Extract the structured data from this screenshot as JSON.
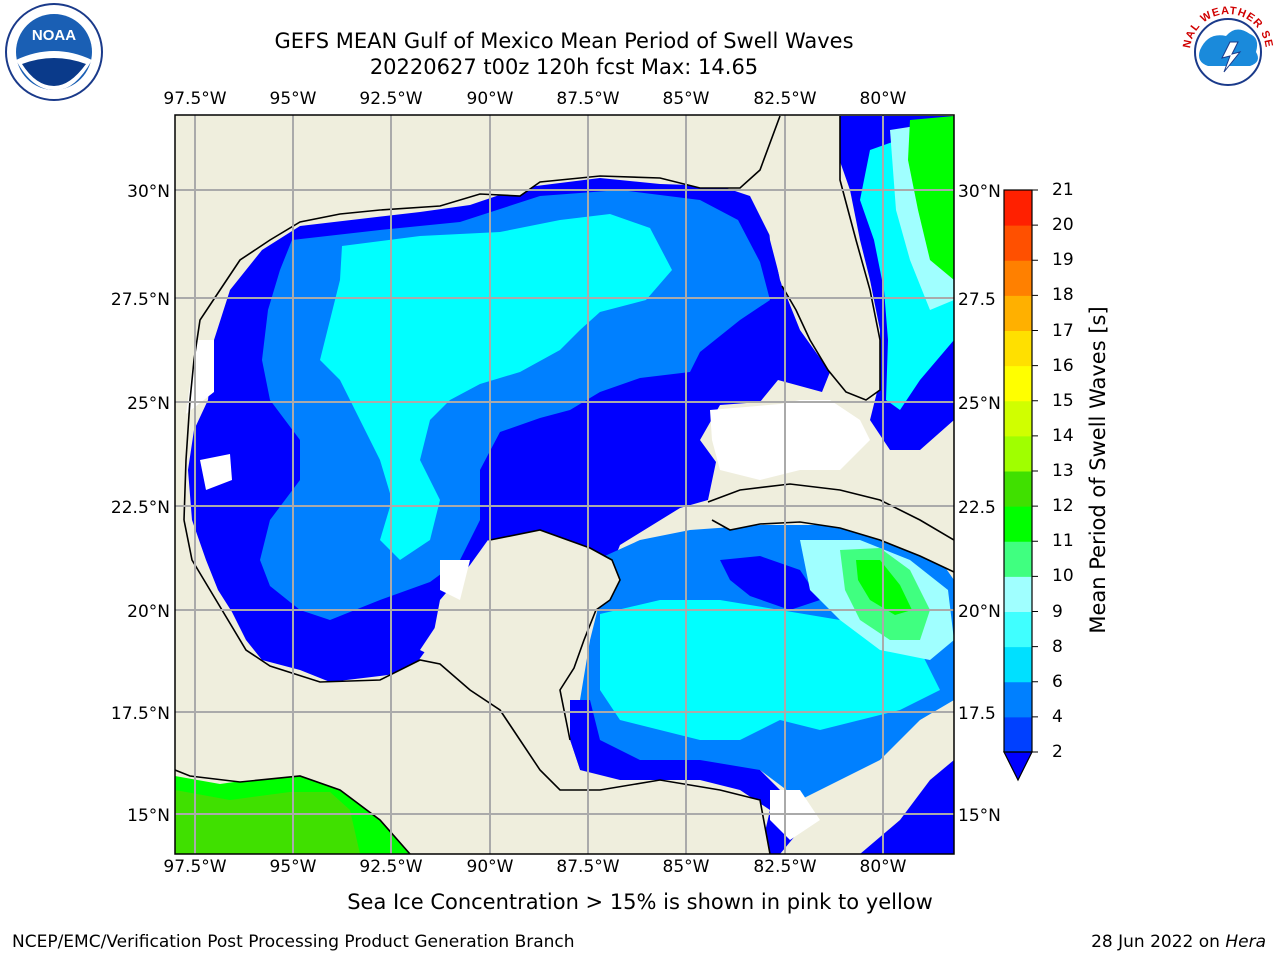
{
  "title_line1": "GEFS MEAN Gulf of Mexico Mean Period of Swell Waves",
  "title_line2": "20220627 t00z 120h fcst   Max: 14.65",
  "lon_labels": [
    "97.5°W",
    "95°W",
    "92.5°W",
    "90°W",
    "87.5°W",
    "85°W",
    "82.5°W",
    "80°W"
  ],
  "lat_labels": [
    "30°N",
    "27.5°N",
    "25°N",
    "22.5°N",
    "20°N",
    "17.5°N",
    "15°N"
  ],
  "lat_labels_right": [
    "30°N",
    "27.5",
    "25°N",
    "22.5",
    "20°N",
    "17.5",
    "15°N"
  ],
  "colorbar": {
    "title": "Mean Period of Swell Waves [s]",
    "ticks": [
      "2",
      "4",
      "6",
      "8",
      "9",
      "10",
      "11",
      "12",
      "13",
      "14",
      "15",
      "16",
      "17",
      "18",
      "19",
      "20",
      "21"
    ],
    "colors": [
      "#0040ff",
      "#0080ff",
      "#00e0ff",
      "#40ffff",
      "#a0ffff",
      "#40ff80",
      "#00ff00",
      "#40e000",
      "#a0ff00",
      "#d0ff00",
      "#ffff00",
      "#ffe000",
      "#ffb000",
      "#ff8000",
      "#ff5000",
      "#ff2000"
    ],
    "extend_color": "#0000ff"
  },
  "ice_note": "Sea Ice Concentration > 15% is shown in pink to yellow",
  "credit": "NCEP/EMC/Verification Post Processing Product Generation Branch",
  "date_text": "28 Jun 2022 on ",
  "date_machine": "Hera",
  "logos": {
    "left": "NOAA",
    "right": "NATIONAL WEATHER SERVICE"
  },
  "land_color": "#efeedd",
  "grid_color": "#aaaaaa"
}
